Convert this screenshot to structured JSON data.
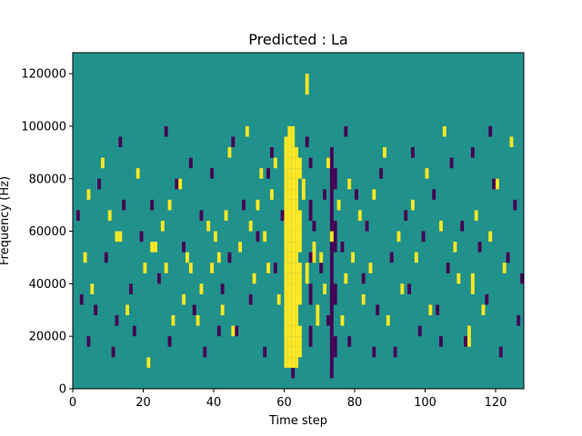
{
  "chart_data": {
    "type": "heatmap",
    "title": "Predicted : La",
    "xlabel": "Time step",
    "ylabel": "Frequency (Hz)",
    "xlim": [
      0,
      128
    ],
    "ylim": [
      0,
      128000
    ],
    "grid": false,
    "legend": "none",
    "x_ticks": [
      0,
      20,
      40,
      60,
      80,
      100,
      120
    ],
    "y_ticks": [
      0,
      20000,
      40000,
      60000,
      80000,
      100000,
      120000
    ],
    "y_tick_labels": [
      "0",
      "20000",
      "40000",
      "60000",
      "80000",
      "100000",
      "120000"
    ],
    "colors": {
      "background": "#21918c",
      "high": "#fde725",
      "low": "#440154"
    },
    "high_cells": [
      [
        60,
        2
      ],
      [
        60,
        3
      ],
      [
        60,
        4
      ],
      [
        60,
        5
      ],
      [
        60,
        6
      ],
      [
        60,
        7
      ],
      [
        60,
        8
      ],
      [
        60,
        9
      ],
      [
        60,
        10
      ],
      [
        60,
        11
      ],
      [
        60,
        12
      ],
      [
        60,
        13
      ],
      [
        60,
        14
      ],
      [
        60,
        15
      ],
      [
        60,
        16
      ],
      [
        60,
        17
      ],
      [
        60,
        18
      ],
      [
        60,
        19
      ],
      [
        60,
        20
      ],
      [
        60,
        21
      ],
      [
        60,
        22
      ],
      [
        60,
        23
      ],
      [
        61,
        2
      ],
      [
        61,
        3
      ],
      [
        61,
        4
      ],
      [
        61,
        5
      ],
      [
        61,
        6
      ],
      [
        61,
        7
      ],
      [
        61,
        8
      ],
      [
        61,
        9
      ],
      [
        61,
        10
      ],
      [
        61,
        11
      ],
      [
        61,
        12
      ],
      [
        61,
        13
      ],
      [
        61,
        14
      ],
      [
        61,
        15
      ],
      [
        61,
        16
      ],
      [
        61,
        17
      ],
      [
        61,
        18
      ],
      [
        61,
        19
      ],
      [
        61,
        20
      ],
      [
        61,
        21
      ],
      [
        61,
        22
      ],
      [
        61,
        23
      ],
      [
        61,
        24
      ],
      [
        62,
        2
      ],
      [
        62,
        3
      ],
      [
        62,
        4
      ],
      [
        62,
        5
      ],
      [
        62,
        6
      ],
      [
        62,
        7
      ],
      [
        62,
        8
      ],
      [
        62,
        9
      ],
      [
        62,
        10
      ],
      [
        62,
        11
      ],
      [
        62,
        12
      ],
      [
        62,
        13
      ],
      [
        62,
        14
      ],
      [
        62,
        15
      ],
      [
        62,
        16
      ],
      [
        62,
        17
      ],
      [
        62,
        18
      ],
      [
        62,
        19
      ],
      [
        62,
        20
      ],
      [
        62,
        21
      ],
      [
        62,
        22
      ],
      [
        62,
        23
      ],
      [
        62,
        24
      ],
      [
        63,
        2
      ],
      [
        63,
        3
      ],
      [
        63,
        4
      ],
      [
        63,
        5
      ],
      [
        63,
        6
      ],
      [
        63,
        7
      ],
      [
        63,
        8
      ],
      [
        63,
        9
      ],
      [
        63,
        10
      ],
      [
        63,
        11
      ],
      [
        63,
        12
      ],
      [
        63,
        13
      ],
      [
        63,
        14
      ],
      [
        63,
        15
      ],
      [
        63,
        16
      ],
      [
        63,
        17
      ],
      [
        63,
        18
      ],
      [
        63,
        19
      ],
      [
        63,
        20
      ],
      [
        63,
        21
      ],
      [
        63,
        22
      ],
      [
        64,
        3
      ],
      [
        64,
        4
      ],
      [
        64,
        5
      ],
      [
        64,
        8
      ],
      [
        64,
        9
      ],
      [
        64,
        10
      ],
      [
        64,
        11
      ],
      [
        64,
        13
      ],
      [
        64,
        14
      ],
      [
        64,
        15
      ],
      [
        64,
        16
      ],
      [
        64,
        20
      ],
      [
        64,
        21
      ],
      [
        65,
        18
      ],
      [
        65,
        19
      ],
      [
        66,
        10
      ],
      [
        66,
        11
      ],
      [
        66,
        28
      ],
      [
        66,
        29
      ],
      [
        68,
        12
      ],
      [
        68,
        13
      ],
      [
        69,
        6
      ],
      [
        69,
        7
      ],
      [
        12,
        14
      ],
      [
        13,
        14
      ],
      [
        22,
        13
      ],
      [
        23,
        13
      ],
      [
        25,
        15
      ],
      [
        26,
        11
      ],
      [
        27,
        17
      ],
      [
        28,
        6
      ],
      [
        32,
        12
      ],
      [
        33,
        11
      ],
      [
        35,
        6
      ],
      [
        36,
        9
      ],
      [
        38,
        15
      ],
      [
        39,
        11
      ],
      [
        40,
        14
      ],
      [
        41,
        12
      ],
      [
        42,
        7
      ],
      [
        43,
        16
      ],
      [
        44,
        22
      ],
      [
        45,
        5
      ],
      [
        52,
        17
      ],
      [
        53,
        20
      ],
      [
        54,
        14
      ],
      [
        55,
        11
      ],
      [
        56,
        18
      ],
      [
        57,
        21
      ],
      [
        58,
        8
      ],
      [
        70,
        12
      ],
      [
        71,
        9
      ],
      [
        72,
        21
      ],
      [
        73,
        14
      ],
      [
        75,
        17
      ],
      [
        76,
        6
      ],
      [
        77,
        10
      ],
      [
        78,
        19
      ],
      [
        79,
        12
      ],
      [
        81,
        16
      ],
      [
        82,
        8
      ],
      [
        84,
        11
      ],
      [
        85,
        18
      ],
      [
        88,
        22
      ],
      [
        89,
        6
      ],
      [
        92,
        14
      ],
      [
        93,
        9
      ],
      [
        96,
        17
      ],
      [
        97,
        12
      ],
      [
        100,
        20
      ],
      [
        101,
        7
      ],
      [
        104,
        15
      ],
      [
        105,
        24
      ],
      [
        108,
        13
      ],
      [
        109,
        10
      ],
      [
        112,
        4
      ],
      [
        112,
        5
      ],
      [
        113,
        9
      ],
      [
        113,
        10
      ],
      [
        114,
        16
      ],
      [
        116,
        7
      ],
      [
        118,
        14
      ],
      [
        120,
        19
      ],
      [
        122,
        11
      ],
      [
        124,
        23
      ],
      [
        3,
        12
      ],
      [
        4,
        18
      ],
      [
        5,
        9
      ],
      [
        8,
        21
      ],
      [
        10,
        16
      ],
      [
        15,
        7
      ],
      [
        18,
        20
      ],
      [
        20,
        11
      ],
      [
        21,
        2
      ],
      [
        30,
        19
      ],
      [
        31,
        8
      ],
      [
        47,
        13
      ],
      [
        49,
        24
      ],
      [
        50,
        15
      ],
      [
        51,
        10
      ]
    ],
    "low_cells": [
      [
        73,
        1
      ],
      [
        73,
        2
      ],
      [
        73,
        3
      ],
      [
        73,
        4
      ],
      [
        73,
        5
      ],
      [
        73,
        6
      ],
      [
        73,
        7
      ],
      [
        73,
        8
      ],
      [
        73,
        9
      ],
      [
        73,
        10
      ],
      [
        73,
        11
      ],
      [
        73,
        12
      ],
      [
        73,
        13
      ],
      [
        73,
        14
      ],
      [
        73,
        15
      ],
      [
        73,
        16
      ],
      [
        73,
        17
      ],
      [
        73,
        18
      ],
      [
        73,
        19
      ],
      [
        73,
        20
      ],
      [
        73,
        21
      ],
      [
        73,
        22
      ],
      [
        74,
        3
      ],
      [
        74,
        4
      ],
      [
        74,
        8
      ],
      [
        74,
        9
      ],
      [
        74,
        13
      ],
      [
        74,
        14
      ],
      [
        74,
        15
      ],
      [
        74,
        19
      ],
      [
        74,
        20
      ],
      [
        67,
        4
      ],
      [
        67,
        5
      ],
      [
        67,
        8
      ],
      [
        67,
        9
      ],
      [
        67,
        12
      ],
      [
        67,
        16
      ],
      [
        67,
        17
      ],
      [
        67,
        21
      ],
      [
        68,
        15
      ],
      [
        70,
        11
      ],
      [
        71,
        18
      ],
      [
        72,
        6
      ],
      [
        4,
        4
      ],
      [
        6,
        7
      ],
      [
        9,
        12
      ],
      [
        11,
        3
      ],
      [
        14,
        17
      ],
      [
        16,
        9
      ],
      [
        17,
        5
      ],
      [
        19,
        14
      ],
      [
        24,
        10
      ],
      [
        27,
        4
      ],
      [
        29,
        19
      ],
      [
        31,
        13
      ],
      [
        34,
        7
      ],
      [
        36,
        16
      ],
      [
        37,
        3
      ],
      [
        39,
        20
      ],
      [
        42,
        9
      ],
      [
        44,
        12
      ],
      [
        46,
        5
      ],
      [
        48,
        17
      ],
      [
        50,
        8
      ],
      [
        52,
        14
      ],
      [
        54,
        3
      ],
      [
        55,
        20
      ],
      [
        57,
        11
      ],
      [
        59,
        16
      ],
      [
        76,
        13
      ],
      [
        78,
        4
      ],
      [
        80,
        18
      ],
      [
        82,
        10
      ],
      [
        83,
        15
      ],
      [
        86,
        7
      ],
      [
        87,
        20
      ],
      [
        90,
        12
      ],
      [
        91,
        3
      ],
      [
        94,
        16
      ],
      [
        95,
        9
      ],
      [
        98,
        5
      ],
      [
        99,
        14
      ],
      [
        102,
        18
      ],
      [
        103,
        7
      ],
      [
        106,
        11
      ],
      [
        107,
        21
      ],
      [
        110,
        15
      ],
      [
        111,
        4
      ],
      [
        115,
        13
      ],
      [
        117,
        8
      ],
      [
        119,
        19
      ],
      [
        121,
        3
      ],
      [
        123,
        12
      ],
      [
        125,
        17
      ],
      [
        126,
        6
      ],
      [
        127,
        10
      ],
      [
        1,
        16
      ],
      [
        2,
        8
      ],
      [
        7,
        19
      ],
      [
        12,
        6
      ],
      [
        13,
        23
      ],
      [
        22,
        17
      ],
      [
        26,
        24
      ],
      [
        33,
        21
      ],
      [
        41,
        5
      ],
      [
        45,
        23
      ],
      [
        56,
        22
      ],
      [
        62,
        1
      ],
      [
        66,
        23
      ],
      [
        77,
        24
      ],
      [
        85,
        3
      ],
      [
        96,
        22
      ],
      [
        104,
        4
      ],
      [
        113,
        22
      ],
      [
        118,
        24
      ]
    ]
  }
}
